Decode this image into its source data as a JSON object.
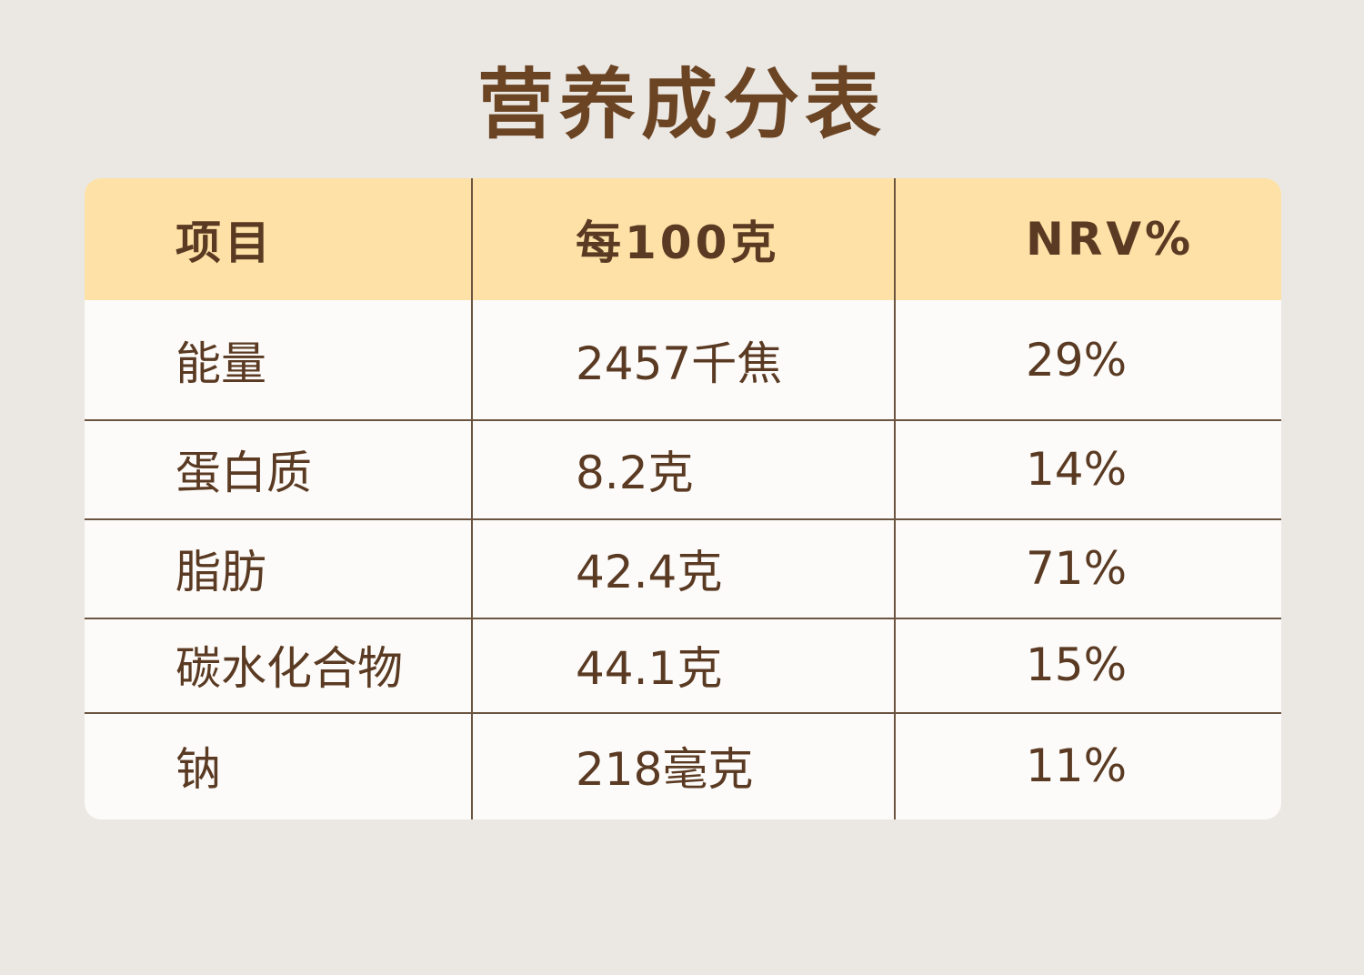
{
  "header": {
    "title": "营养成分表"
  },
  "table": {
    "columns": [
      "项目",
      "每100克",
      "NRV%"
    ],
    "rows": [
      [
        "能量",
        "2457千焦",
        "29%"
      ],
      [
        "蛋白质",
        "8.2克",
        "14%"
      ],
      [
        "脂肪",
        "42.4克",
        "71%"
      ],
      [
        "碳水化合物",
        "44.1克",
        "15%"
      ],
      [
        "钠",
        "218毫克",
        "11%"
      ]
    ]
  }
}
